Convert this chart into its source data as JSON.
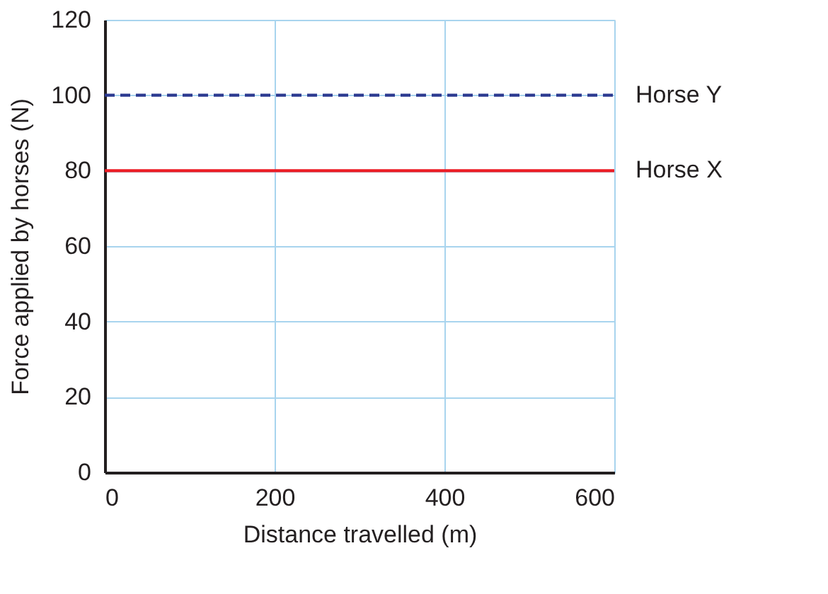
{
  "chart_data": {
    "type": "line",
    "xlabel": "Distance travelled (m)",
    "ylabel": "Force applied by horses (N)",
    "x": [
      0,
      600
    ],
    "series": [
      {
        "name": "Horse Y",
        "color": "#2b3990",
        "line_style": "dashed",
        "values": [
          100,
          100
        ]
      },
      {
        "name": "Horse X",
        "color": "#ed1c24",
        "line_style": "solid",
        "values": [
          80,
          80
        ]
      }
    ],
    "xlim": [
      0,
      600
    ],
    "xticks": [
      0,
      200,
      400,
      600
    ],
    "ylim": [
      0,
      120
    ],
    "yticks": [
      0,
      20,
      40,
      60,
      80,
      100,
      120
    ],
    "grid": true,
    "marker": "none"
  }
}
